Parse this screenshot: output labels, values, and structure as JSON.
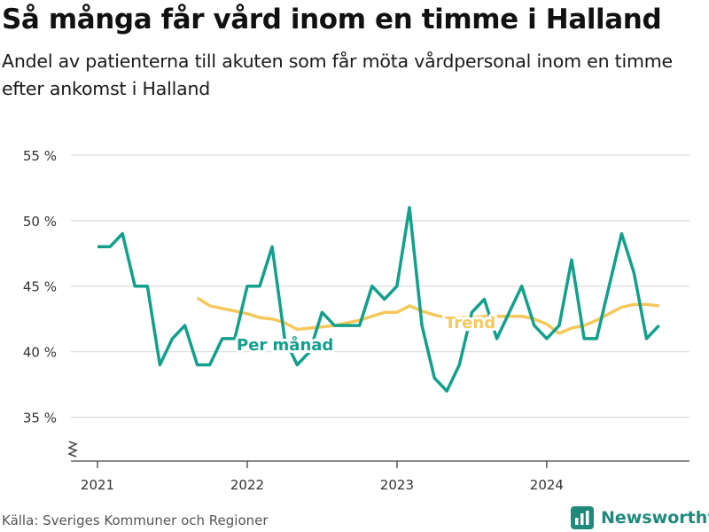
{
  "title": "Så många får vård inom en timme i Halland",
  "subtitle": "Andel av patienterna till akuten som får möta vårdpersonal inom en timme efter ankomst i Halland",
  "source": "Källa: Sveriges Kommuner och Regioner",
  "brand": "Newsworthy",
  "colors": {
    "monthly": "#12a08c",
    "trend": "#f5c85c",
    "grid": "#d9d9d9",
    "axis": "#444444",
    "brand": "#1f8a7c"
  },
  "chart_data": {
    "type": "line",
    "ylim": [
      32,
      56
    ],
    "yticks": [
      35,
      40,
      45,
      50,
      55
    ],
    "ytick_labels": [
      "35 %",
      "40 %",
      "45 %",
      "50 %",
      "55 %"
    ],
    "xlim": [
      "2021-01",
      "2024-12"
    ],
    "xticks": [
      "2021-01",
      "2022-01",
      "2023-01",
      "2024-01"
    ],
    "xtick_labels": [
      "2021",
      "2022",
      "2023",
      "2024"
    ],
    "grid": true,
    "axis_break": true,
    "series": [
      {
        "name": "Per månad",
        "style": "monthly",
        "points": [
          {
            "x": "2021-01",
            "y": 48
          },
          {
            "x": "2021-02",
            "y": 48
          },
          {
            "x": "2021-03",
            "y": 49
          },
          {
            "x": "2021-04",
            "y": 45
          },
          {
            "x": "2021-05",
            "y": 45
          },
          {
            "x": "2021-06",
            "y": 39
          },
          {
            "x": "2021-07",
            "y": 41
          },
          {
            "x": "2021-08",
            "y": 42
          },
          {
            "x": "2021-09",
            "y": 39
          },
          {
            "x": "2021-10",
            "y": 39
          },
          {
            "x": "2021-11",
            "y": 41
          },
          {
            "x": "2021-12",
            "y": 41
          },
          {
            "x": "2022-01",
            "y": 45
          },
          {
            "x": "2022-02",
            "y": 45
          },
          {
            "x": "2022-03",
            "y": 48
          },
          {
            "x": "2022-04",
            "y": 41
          },
          {
            "x": "2022-05",
            "y": 39
          },
          {
            "x": "2022-06",
            "y": 40
          },
          {
            "x": "2022-07",
            "y": 43
          },
          {
            "x": "2022-08",
            "y": 42
          },
          {
            "x": "2022-09",
            "y": 42
          },
          {
            "x": "2022-10",
            "y": 42
          },
          {
            "x": "2022-11",
            "y": 45
          },
          {
            "x": "2022-12",
            "y": 44
          },
          {
            "x": "2023-01",
            "y": 45
          },
          {
            "x": "2023-02",
            "y": 51
          },
          {
            "x": "2023-03",
            "y": 42
          },
          {
            "x": "2023-04",
            "y": 38
          },
          {
            "x": "2023-05",
            "y": 37
          },
          {
            "x": "2023-06",
            "y": 39
          },
          {
            "x": "2023-07",
            "y": 43
          },
          {
            "x": "2023-08",
            "y": 44
          },
          {
            "x": "2023-09",
            "y": 41
          },
          {
            "x": "2023-10",
            "y": 43
          },
          {
            "x": "2023-11",
            "y": 45
          },
          {
            "x": "2023-12",
            "y": 42
          },
          {
            "x": "2024-01",
            "y": 41
          },
          {
            "x": "2024-02",
            "y": 42
          },
          {
            "x": "2024-03",
            "y": 47
          },
          {
            "x": "2024-04",
            "y": 41
          },
          {
            "x": "2024-05",
            "y": 41
          },
          {
            "x": "2024-06",
            "y": 45
          },
          {
            "x": "2024-07",
            "y": 49
          },
          {
            "x": "2024-08",
            "y": 46
          },
          {
            "x": "2024-09",
            "y": 41
          },
          {
            "x": "2024-10",
            "y": 42
          }
        ]
      },
      {
        "name": "Trend",
        "style": "trend",
        "points": [
          {
            "x": "2021-09",
            "y": 44.1
          },
          {
            "x": "2021-10",
            "y": 43.5
          },
          {
            "x": "2021-11",
            "y": 43.3
          },
          {
            "x": "2021-12",
            "y": 43.1
          },
          {
            "x": "2022-01",
            "y": 42.9
          },
          {
            "x": "2022-02",
            "y": 42.6
          },
          {
            "x": "2022-03",
            "y": 42.5
          },
          {
            "x": "2022-04",
            "y": 42.2
          },
          {
            "x": "2022-05",
            "y": 41.7
          },
          {
            "x": "2022-06",
            "y": 41.8
          },
          {
            "x": "2022-07",
            "y": 41.9
          },
          {
            "x": "2022-08",
            "y": 42.0
          },
          {
            "x": "2022-09",
            "y": 42.2
          },
          {
            "x": "2022-10",
            "y": 42.4
          },
          {
            "x": "2022-11",
            "y": 42.7
          },
          {
            "x": "2022-12",
            "y": 43.0
          },
          {
            "x": "2023-01",
            "y": 43.0
          },
          {
            "x": "2023-02",
            "y": 43.5
          },
          {
            "x": "2023-03",
            "y": 43.1
          },
          {
            "x": "2023-04",
            "y": 42.8
          },
          {
            "x": "2023-05",
            "y": 42.6
          },
          {
            "x": "2023-06",
            "y": 42.6
          },
          {
            "x": "2023-07",
            "y": 42.6
          },
          {
            "x": "2023-08",
            "y": 42.7
          },
          {
            "x": "2023-09",
            "y": 42.7
          },
          {
            "x": "2023-10",
            "y": 42.7
          },
          {
            "x": "2023-11",
            "y": 42.7
          },
          {
            "x": "2023-12",
            "y": 42.5
          },
          {
            "x": "2024-01",
            "y": 42.1
          },
          {
            "x": "2024-02",
            "y": 41.4
          },
          {
            "x": "2024-03",
            "y": 41.8
          },
          {
            "x": "2024-04",
            "y": 42.0
          },
          {
            "x": "2024-05",
            "y": 42.4
          },
          {
            "x": "2024-06",
            "y": 42.9
          },
          {
            "x": "2024-07",
            "y": 43.4
          },
          {
            "x": "2024-08",
            "y": 43.6
          },
          {
            "x": "2024-09",
            "y": 43.6
          },
          {
            "x": "2024-10",
            "y": 43.5
          }
        ]
      }
    ]
  }
}
